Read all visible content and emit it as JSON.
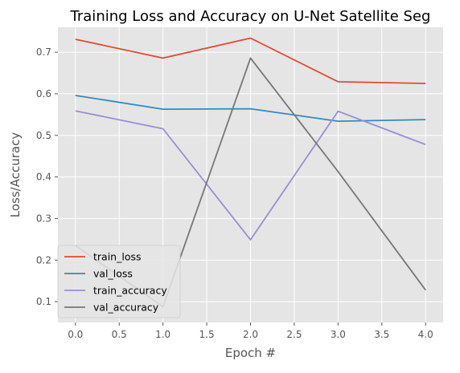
{
  "chart_data": {
    "type": "line",
    "title": "Training Loss and Accuracy on U-Net Satellite Seg",
    "xlabel": "Epoch #",
    "ylabel": "Loss/Accuracy",
    "x": [
      0,
      1,
      2,
      3,
      4
    ],
    "xlim": [
      -0.2,
      4.2
    ],
    "ylim": [
      0.05,
      0.76
    ],
    "xticks": [
      0.0,
      0.5,
      1.0,
      1.5,
      2.0,
      2.5,
      3.0,
      3.5,
      4.0
    ],
    "xtick_labels": [
      "0.0",
      "0.5",
      "1.0",
      "1.5",
      "2.0",
      "2.5",
      "3.0",
      "3.5",
      "4.0"
    ],
    "yticks": [
      0.1,
      0.2,
      0.3,
      0.4,
      0.5,
      0.6,
      0.7
    ],
    "ytick_labels": [
      "0.1",
      "0.2",
      "0.3",
      "0.4",
      "0.5",
      "0.6",
      "0.7"
    ],
    "grid": true,
    "legend_position": "lower-left",
    "background_color": "#e5e5e5",
    "grid_color": "#ffffff",
    "series": [
      {
        "name": "train_loss",
        "color": "#e24a33",
        "values": [
          0.731,
          0.686,
          0.734,
          0.629,
          0.625
        ]
      },
      {
        "name": "val_loss",
        "color": "#348abd",
        "values": [
          0.596,
          0.563,
          0.564,
          0.534,
          0.538
        ]
      },
      {
        "name": "train_accuracy",
        "color": "#988ed5",
        "values": [
          0.559,
          0.516,
          0.249,
          0.558,
          0.478
        ]
      },
      {
        "name": "val_accuracy",
        "color": "#777777",
        "values": [
          0.235,
          0.088,
          0.686,
          0.413,
          0.128
        ]
      }
    ]
  }
}
